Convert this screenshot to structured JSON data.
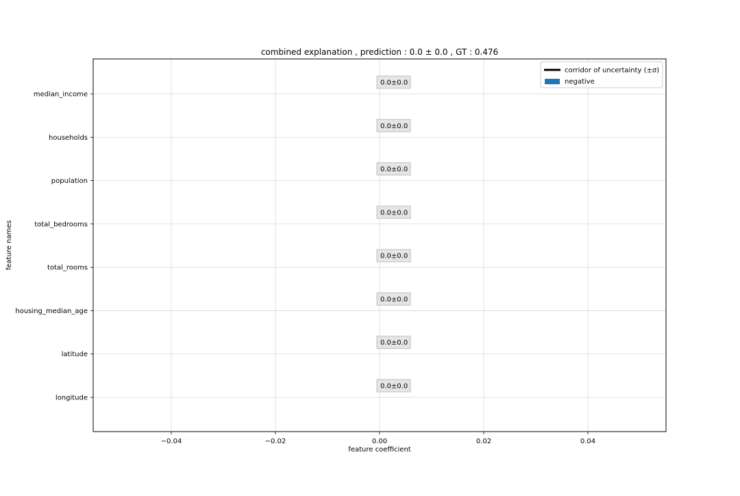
{
  "chart_data": {
    "type": "bar",
    "orientation": "horizontal",
    "title": "combined explanation , prediction : 0.0 ± 0.0 , GT : 0.476",
    "xlabel": "feature coefficient",
    "ylabel": "feature names",
    "categories": [
      "median_income",
      "households",
      "population",
      "total_bedrooms",
      "total_rooms",
      "housing_median_age",
      "latitude",
      "longitude"
    ],
    "values": [
      0.0,
      0.0,
      0.0,
      0.0,
      0.0,
      0.0,
      0.0,
      0.0
    ],
    "uncertainty": [
      0.0,
      0.0,
      0.0,
      0.0,
      0.0,
      0.0,
      0.0,
      0.0
    ],
    "bar_labels": [
      "0.0±0.0",
      "0.0±0.0",
      "0.0±0.0",
      "0.0±0.0",
      "0.0±0.0",
      "0.0±0.0",
      "0.0±0.0",
      "0.0±0.0"
    ],
    "xlim": [
      -0.055,
      0.055
    ],
    "xticks": [
      -0.04,
      -0.02,
      0.0,
      0.02,
      0.04
    ],
    "xtick_labels": [
      "−0.04",
      "−0.02",
      "0.00",
      "0.02",
      "0.04"
    ],
    "grid": true,
    "legend_position": "top-right",
    "legend": [
      {
        "label": "corridor of uncertainty (±σ)",
        "kind": "line",
        "color": "#000000"
      },
      {
        "label": "negative",
        "kind": "patch",
        "color": "#1f77b4"
      }
    ],
    "colors": {
      "negative": "#1f77b4",
      "uncertainty": "#000000",
      "grid": "#d9d9d9",
      "label_box": "#e5e5e5",
      "label_box_border": "#b3b3b3"
    }
  }
}
